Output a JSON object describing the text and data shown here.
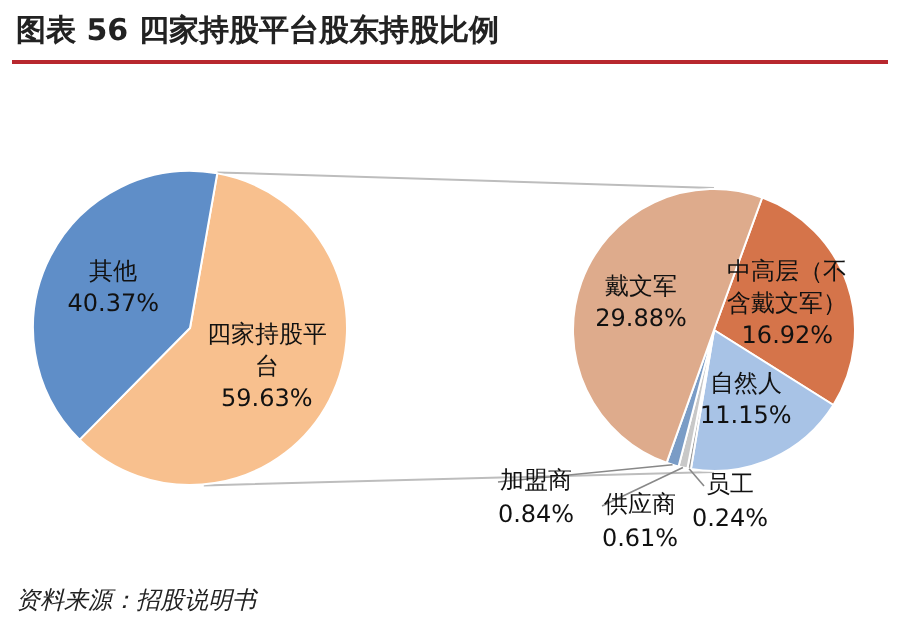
{
  "chart_data": [
    {
      "type": "pie",
      "title": "图表 56 四家持股平台股东持股比例",
      "categories": [
        "四家持股平台",
        "其他"
      ],
      "values": [
        59.63,
        40.37
      ],
      "value_labels": [
        "59.63%",
        "40.37%"
      ],
      "colors": [
        "#f8c08e",
        "#5f8ec8"
      ],
      "annotations": [
        "资料来源：招股说明书"
      ]
    },
    {
      "type": "pie",
      "categories": [
        "中高层（不含戴文军）",
        "自然人",
        "员工",
        "供应商",
        "加盟商",
        "戴文军"
      ],
      "values": [
        16.92,
        11.15,
        0.24,
        0.61,
        0.84,
        29.88
      ],
      "value_labels": [
        "16.92%",
        "11.15%",
        "0.24%",
        "0.61%",
        "0.84%",
        "29.88%"
      ],
      "colors": [
        "#d5744a",
        "#a8c3e6",
        "#9a9a9a",
        "#c8c8c8",
        "#7a9cc6",
        "#deab8c"
      ]
    }
  ]
}
